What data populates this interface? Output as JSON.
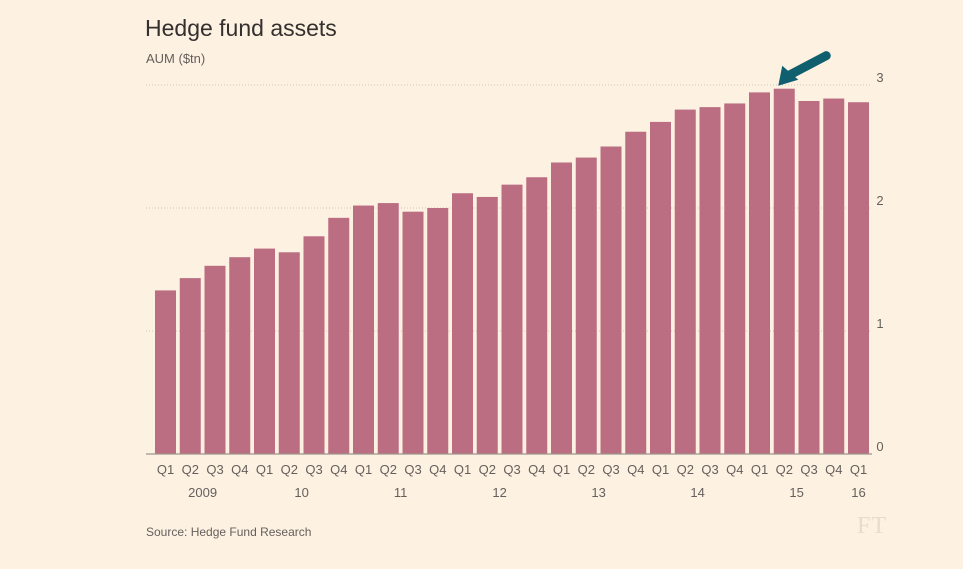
{
  "title": "Hedge fund assets",
  "subtitle": "AUM ($tn)",
  "source": "Source: Hedge Fund Research",
  "logo": "FT",
  "colors": {
    "bar": "#bb6d82",
    "background": "#fdf1e2",
    "arrow": "#0f5f6e",
    "gridline": "#cec6b9"
  },
  "chart_data": {
    "type": "bar",
    "title": "Hedge fund assets",
    "ylabel": "AUM ($tn)",
    "ylim": [
      0,
      3
    ],
    "yticks": [
      0,
      1,
      2,
      3
    ],
    "grid": true,
    "quarter_labels": [
      "Q1",
      "Q2",
      "Q3",
      "Q4",
      "Q1",
      "Q2",
      "Q3",
      "Q4",
      "Q1",
      "Q2",
      "Q3",
      "Q4",
      "Q1",
      "Q2",
      "Q3",
      "Q4",
      "Q1",
      "Q2",
      "Q3",
      "Q4",
      "Q1",
      "Q2",
      "Q3",
      "Q4",
      "Q1",
      "Q2",
      "Q3",
      "Q4",
      "Q1"
    ],
    "year_labels": [
      {
        "label": "2009",
        "index": 1.5
      },
      {
        "label": "10",
        "index": 5.5
      },
      {
        "label": "11",
        "index": 9.5
      },
      {
        "label": "12",
        "index": 13.5
      },
      {
        "label": "13",
        "index": 17.5
      },
      {
        "label": "14",
        "index": 21.5
      },
      {
        "label": "15",
        "index": 25.5
      },
      {
        "label": "16",
        "index": 28
      }
    ],
    "categories": [
      "2009 Q1",
      "2009 Q2",
      "2009 Q3",
      "2009 Q4",
      "2010 Q1",
      "2010 Q2",
      "2010 Q3",
      "2010 Q4",
      "2011 Q1",
      "2011 Q2",
      "2011 Q3",
      "2011 Q4",
      "2012 Q1",
      "2012 Q2",
      "2012 Q3",
      "2012 Q4",
      "2013 Q1",
      "2013 Q2",
      "2013 Q3",
      "2013 Q4",
      "2014 Q1",
      "2014 Q2",
      "2014 Q3",
      "2014 Q4",
      "2015 Q1",
      "2015 Q2",
      "2015 Q3",
      "2015 Q4",
      "2016 Q1"
    ],
    "values": [
      1.33,
      1.43,
      1.53,
      1.6,
      1.67,
      1.64,
      1.77,
      1.92,
      2.02,
      2.04,
      1.97,
      2.0,
      2.12,
      2.09,
      2.19,
      2.25,
      2.37,
      2.41,
      2.5,
      2.62,
      2.7,
      2.8,
      2.82,
      2.85,
      2.94,
      2.97,
      2.87,
      2.89,
      2.86
    ],
    "annotation": {
      "type": "arrow",
      "target_index": 25
    }
  }
}
